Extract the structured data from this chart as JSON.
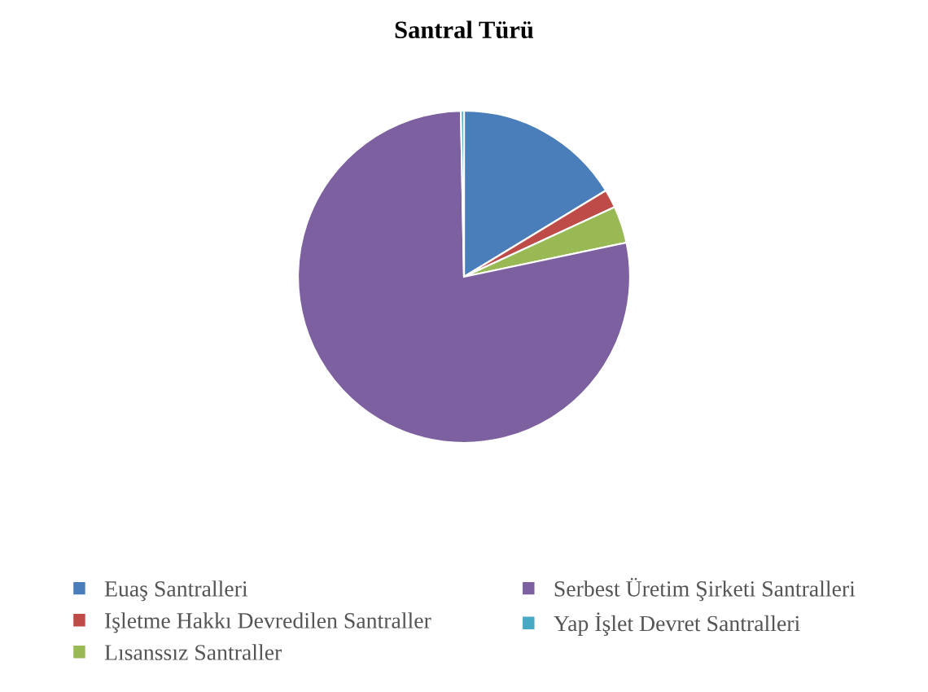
{
  "chart_data": {
    "type": "pie",
    "title": "Santral Türü",
    "categories": [
      "Euaş Santralleri",
      "Işletme Hakkı Devredilen Santraller",
      "Lısanssız Santraller",
      "Serbest Üretim Şirketi Santralleri",
      "Yap İşlet Devret Santralleri"
    ],
    "values": [
      16.3,
      1.8,
      3.6,
      78.0,
      0.3
    ],
    "colors": [
      "#4a7ebb",
      "#be4b48",
      "#98b954",
      "#7d60a0",
      "#46aac5"
    ],
    "legend": "bottom"
  }
}
